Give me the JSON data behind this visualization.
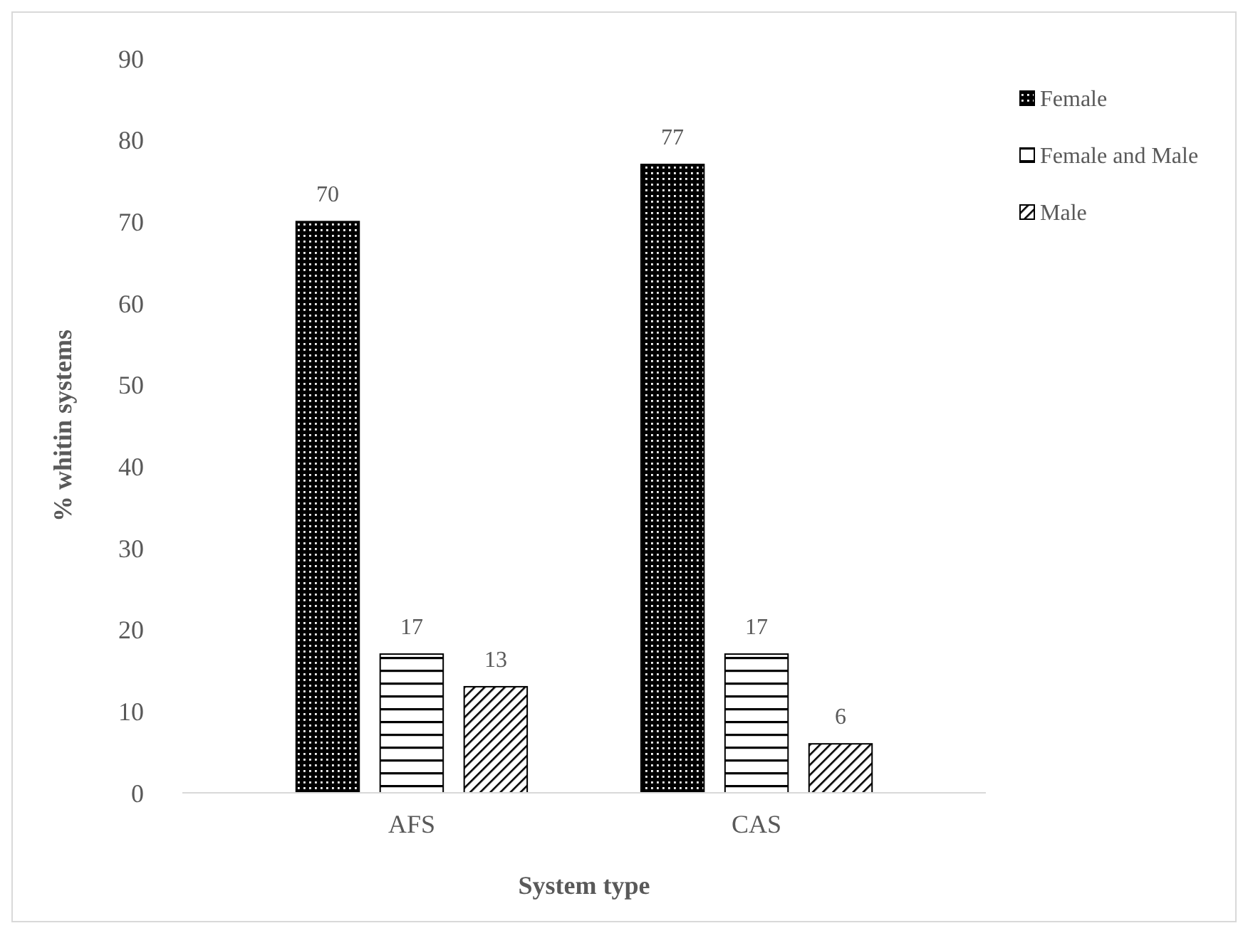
{
  "chart_data": {
    "type": "bar",
    "xlabel": "System type",
    "ylabel": "% whitin systems",
    "categories": [
      "AFS",
      "CAS"
    ],
    "series": [
      {
        "name": "Female",
        "color": "#000000",
        "values": [
          70,
          77
        ]
      },
      {
        "name": "Female and Male",
        "color": "#000000",
        "values": [
          17,
          17
        ]
      },
      {
        "name": "Male",
        "color": "#000000",
        "values": [
          13,
          6
        ]
      }
    ],
    "ylim": [
      0,
      90
    ],
    "yticks": [
      0,
      10,
      20,
      30,
      40,
      50,
      60,
      70,
      80,
      90
    ],
    "data_labels": true,
    "legend": "right",
    "grid": false
  }
}
